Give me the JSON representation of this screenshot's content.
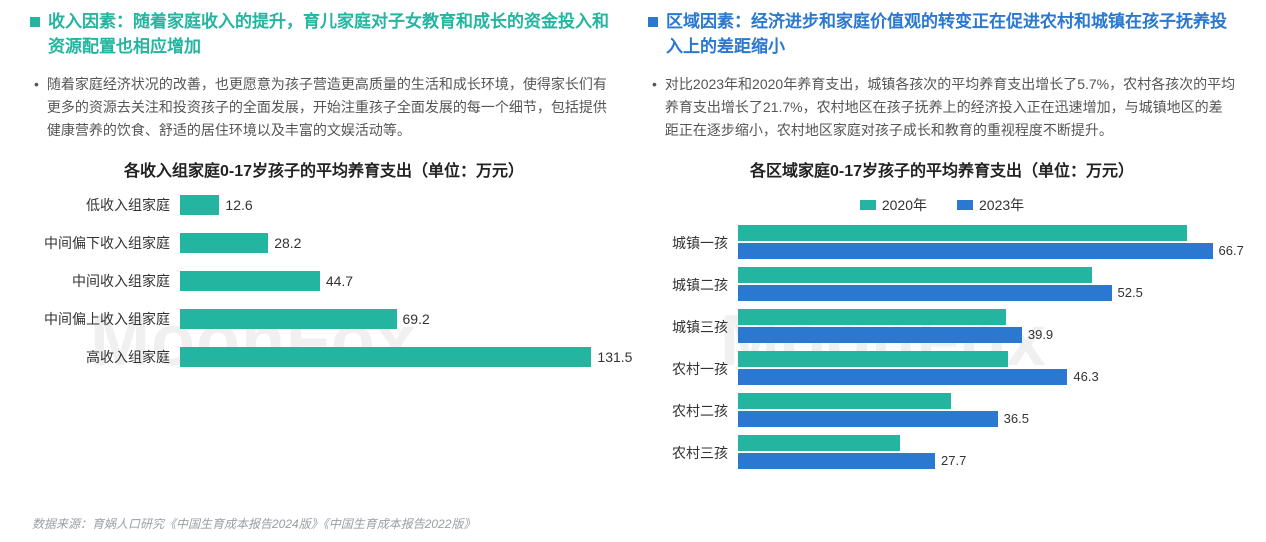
{
  "watermark": "MoonFox",
  "source": "数据来源：育娲人口研究《中国生育成本报告2024版》《中国生育成本报告2022版》",
  "left": {
    "heading": "收入因素：随着家庭收入的提升，育儿家庭对子女教育和成长的资金投入和资源配置也相应增加",
    "paragraph": "随着家庭经济状况的改善，也更愿意为孩子营造更高质量的生活和成长环境，使得家长们有更多的资源去关注和投资孩子的全面发展，开始注重孩子全面发展的每一个细节，包括提供健康营养的饮食、舒适的居住环境以及丰富的文娱活动等。",
    "chart": {
      "type": "bar-horizontal",
      "title": "各收入组家庭0-17岁孩子的平均养育支出（单位：万元）",
      "bar_color": "#24b5a0",
      "background_color": "#ffffff",
      "label_fontsize": 14,
      "title_fontsize": 16,
      "xmax": 140,
      "categories": [
        "低收入组家庭",
        "中间偏下收入组家庭",
        "中间收入组家庭",
        "中间偏上收入组家庭",
        "高收入组家庭"
      ],
      "values": [
        12.6,
        28.2,
        44.7,
        69.2,
        131.5
      ]
    }
  },
  "right": {
    "heading": "区域因素：经济进步和家庭价值观的转变正在促进农村和城镇在孩子抚养投入上的差距缩小",
    "paragraph": "对比2023年和2020年养育支出，城镇各孩次的平均养育支出增长了5.7%，农村各孩次的平均养育支出增长了21.7%，农村地区在孩子抚养上的经济投入正在迅速增加，与城镇地区的差距正在逐步缩小，农村地区家庭对孩子成长和教育的重视程度不断提升。",
    "chart": {
      "type": "grouped-bar-horizontal",
      "title": "各区域家庭0-17岁孩子的平均养育支出（单位：万元）",
      "background_color": "#ffffff",
      "label_fontsize": 14,
      "title_fontsize": 16,
      "xmax": 70,
      "legend": [
        {
          "label": "2020年",
          "color": "#24b5a0"
        },
        {
          "label": "2023年",
          "color": "#2a78d0"
        }
      ],
      "categories": [
        "城镇一孩",
        "城镇二孩",
        "城镇三孩",
        "农村一孩",
        "农村二孩",
        "农村三孩"
      ],
      "series": {
        "2020": [
          63.1,
          49.7,
          37.7,
          38.0,
          30.0,
          22.8
        ],
        "2023": [
          66.7,
          52.5,
          39.9,
          46.3,
          36.5,
          27.7
        ]
      },
      "value_labels_series": "2023",
      "value_labels": [
        66.7,
        52.5,
        39.9,
        46.3,
        36.5,
        27.7
      ]
    }
  }
}
